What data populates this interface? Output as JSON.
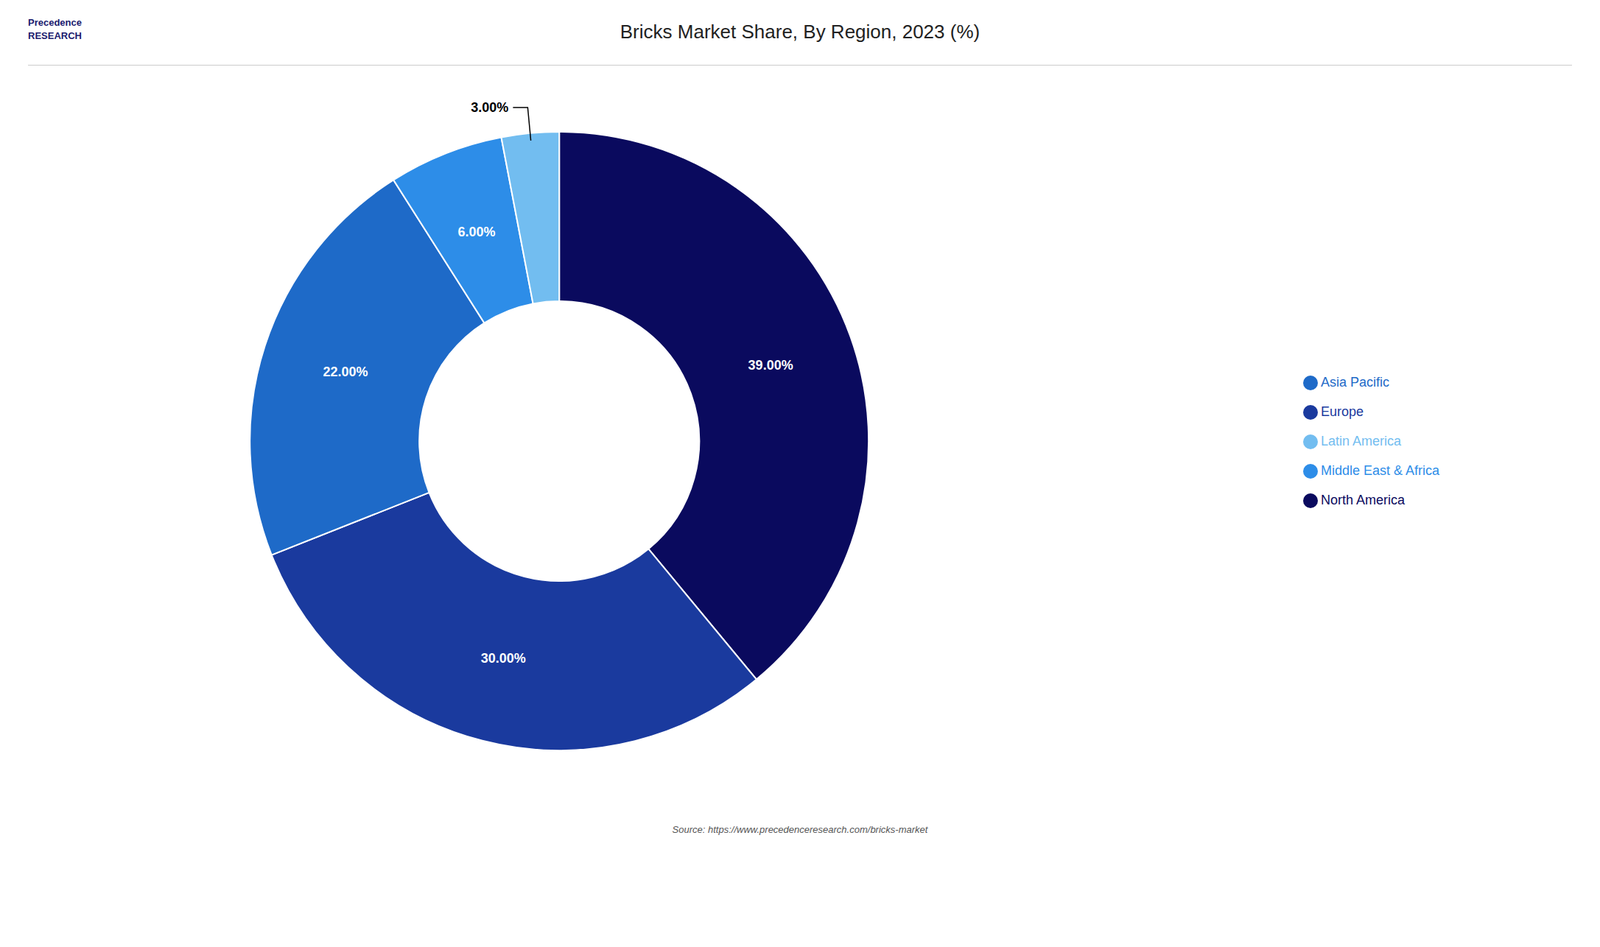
{
  "chart_data": {
    "type": "pie",
    "title": "Bricks Market Share, By Region, 2023 (%)",
    "categories": [
      "North America",
      "Europe",
      "Asia Pacific",
      "Middle East & Africa",
      "Latin America"
    ],
    "values": [
      39.0,
      30.0,
      22.0,
      6.0,
      3.0
    ],
    "value_labels": [
      "39.00%",
      "30.00%",
      "22.00%",
      "6.00%",
      "3.00%"
    ],
    "colors": [
      "#0a0a5e",
      "#1a3a9e",
      "#1e6ac8",
      "#2d8de8",
      "#72bdf0"
    ],
    "data_labels": true,
    "legend": "right",
    "annotations": [
      "Precedence\nRESEARCH",
      "Source: https://www.precedenceresearch.com/bricks-market"
    ]
  }
}
